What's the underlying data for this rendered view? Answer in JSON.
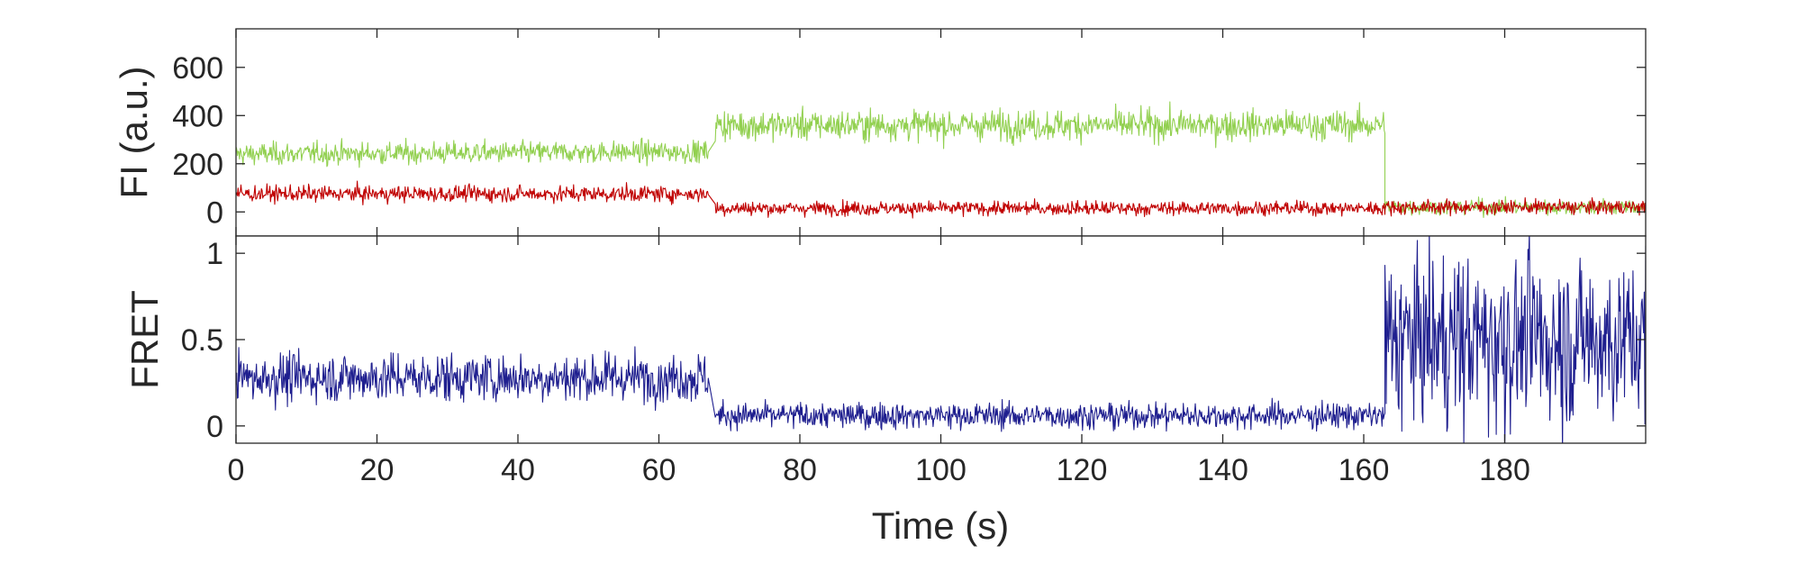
{
  "chart_data": [
    {
      "type": "line",
      "panel": "top",
      "title": "",
      "xlabel": "",
      "ylabel": "FI (a.u.)",
      "xlim": [
        0,
        200
      ],
      "ylim": [
        -100,
        760
      ],
      "yticks": [
        0,
        200,
        400,
        600
      ],
      "ytick_labels": [
        "0",
        "200",
        "400",
        "600"
      ],
      "xtick_labels_shown": false,
      "grid": false,
      "legend": "none",
      "sampling_note": "segment means read from the trace; noisy signal approximated around these levels",
      "series": [
        {
          "color": "#92d050",
          "segments": [
            {
              "x": [
                0,
                67
              ],
              "start": 240,
              "end": 250,
              "noise_sd": 55
            },
            {
              "x": [
                68,
                163
              ],
              "mean": 360,
              "noise_sd": 75
            },
            {
              "x": [
                163,
                200
              ],
              "mean": 20,
              "noise_sd": 40
            }
          ]
        },
        {
          "color": "#c00000",
          "segments": [
            {
              "x": [
                0,
                67
              ],
              "mean": 75,
              "noise_sd": 40
            },
            {
              "x": [
                68,
                163
              ],
              "mean": 15,
              "noise_sd": 35
            },
            {
              "x": [
                163,
                200
              ],
              "mean": 20,
              "noise_sd": 35
            }
          ]
        }
      ]
    },
    {
      "type": "line",
      "panel": "bottom",
      "title": "",
      "xlabel": "Time (s)",
      "ylabel": "FRET",
      "xlim": [
        0,
        200
      ],
      "ylim": [
        -0.1,
        1.1
      ],
      "yticks": [
        0,
        0.5,
        1
      ],
      "ytick_labels": [
        "0",
        "0.5",
        "1"
      ],
      "xticks": [
        0,
        20,
        40,
        60,
        80,
        100,
        120,
        140,
        160,
        180
      ],
      "xtick_labels": [
        "0",
        "20",
        "40",
        "60",
        "80",
        "100",
        "120",
        "140",
        "160",
        "180"
      ],
      "grid": false,
      "legend": "none",
      "series": [
        {
          "color": "#1f1f8f",
          "segments": [
            {
              "x": [
                0,
                67
              ],
              "mean": 0.28,
              "noise_sd": 0.17
            },
            {
              "x": [
                68,
                163
              ],
              "mean": 0.06,
              "noise_sd": 0.09
            },
            {
              "x": [
                163,
                200
              ],
              "mean": 0.5,
              "noise_sd": 0.6
            }
          ]
        }
      ]
    }
  ]
}
